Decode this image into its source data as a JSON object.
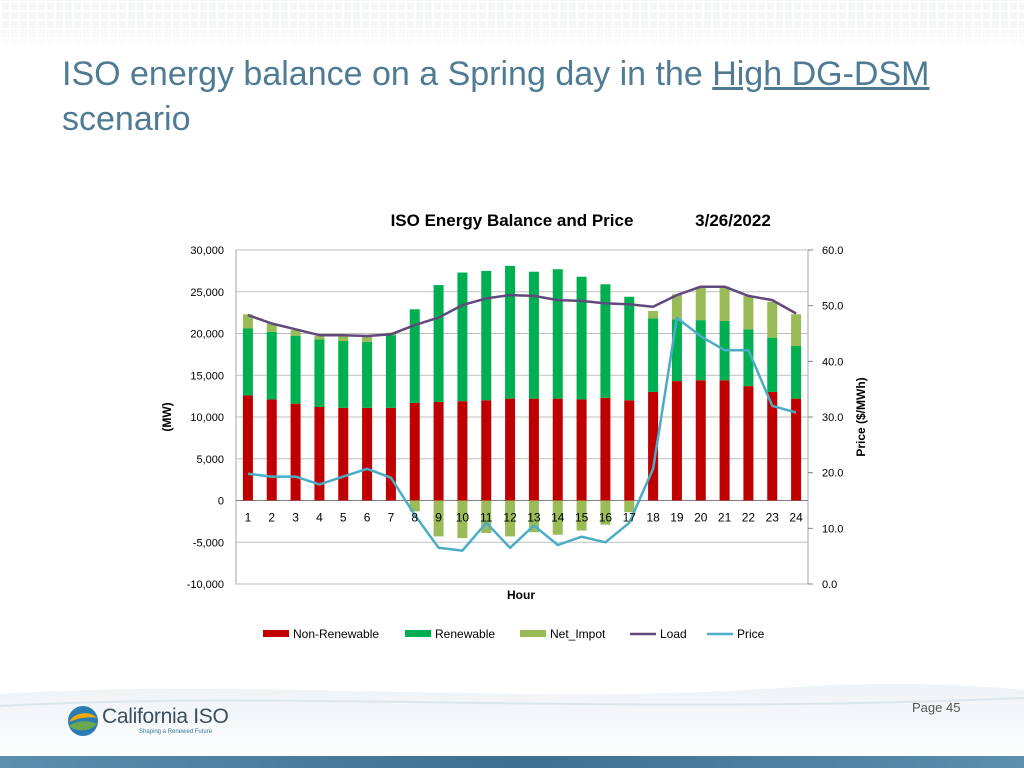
{
  "slide": {
    "title_part1": "ISO energy balance on a Spring day in the ",
    "title_link": "High DG-DSM",
    "title_part2": " scenario",
    "page_number": "Page 45",
    "logo_name": "California ISO",
    "logo_tagline": "Shaping a Renewed Future"
  },
  "chart_data": {
    "type": "bar",
    "title": "ISO Energy Balance and Price",
    "date": "3/26/2022",
    "xlabel": "Hour",
    "ylabel": "(MW)",
    "y2label": "Price ($/MWh)",
    "categories": [
      "1",
      "2",
      "3",
      "4",
      "5",
      "6",
      "7",
      "8",
      "9",
      "10",
      "11",
      "12",
      "13",
      "14",
      "15",
      "16",
      "17",
      "18",
      "19",
      "20",
      "21",
      "22",
      "23",
      "24"
    ],
    "ylim": [
      -10000,
      30000
    ],
    "yticks": [
      -10000,
      -5000,
      0,
      5000,
      10000,
      15000,
      20000,
      25000,
      30000
    ],
    "ytick_labels": [
      "-10,000",
      "-5,000",
      "0",
      "5,000",
      "10,000",
      "15,000",
      "20,000",
      "25,000",
      "30,000"
    ],
    "y2lim": [
      0,
      60
    ],
    "y2ticks": [
      0,
      10,
      20,
      30,
      40,
      50,
      60
    ],
    "y2tick_labels": [
      "0.0",
      "10.0",
      "20.0",
      "30.0",
      "40.0",
      "50.0",
      "60.0"
    ],
    "grid": true,
    "legend_position": "bottom",
    "series": [
      {
        "name": "Non-Renewable",
        "kind": "bar",
        "axis": "left",
        "color": "#c00000",
        "values": [
          12600,
          12100,
          11600,
          11200,
          11100,
          11100,
          11100,
          11700,
          11800,
          11900,
          12000,
          12200,
          12200,
          12200,
          12100,
          12300,
          12000,
          13000,
          14300,
          14400,
          14400,
          13700,
          13000,
          12200
        ]
      },
      {
        "name": "Renewable",
        "kind": "bar",
        "axis": "left",
        "color": "#00b050",
        "values": [
          8000,
          8100,
          8100,
          8100,
          8000,
          7900,
          8700,
          11200,
          14000,
          15400,
          15500,
          15900,
          15200,
          15500,
          14700,
          13600,
          12400,
          8800,
          7400,
          7200,
          7100,
          6800,
          6500,
          6300
        ]
      },
      {
        "name": "Net_Impot",
        "kind": "bar",
        "axis": "left",
        "color": "#9bbb59",
        "values": [
          1700,
          1000,
          700,
          400,
          600,
          600,
          300,
          -1300,
          -4300,
          -4500,
          -3900,
          -4300,
          -3800,
          -4100,
          -3600,
          -2900,
          -1400,
          900,
          3000,
          4000,
          4100,
          4000,
          4300,
          3800
        ]
      },
      {
        "name": "Load",
        "kind": "line",
        "axis": "left",
        "color": "#604a7b",
        "values": [
          22200,
          21200,
          20500,
          19800,
          19800,
          19700,
          19900,
          21000,
          21900,
          23400,
          24200,
          24600,
          24500,
          24000,
          23900,
          23600,
          23500,
          23200,
          24600,
          25600,
          25600,
          24500,
          24000,
          22400
        ]
      },
      {
        "name": "Price",
        "kind": "line",
        "axis": "right",
        "color": "#4bacc6",
        "values": [
          19.8,
          19.3,
          19.3,
          17.9,
          19.3,
          20.7,
          19.1,
          12.4,
          6.5,
          6.0,
          11.0,
          6.5,
          10.5,
          7.0,
          8.5,
          7.5,
          11.0,
          20.7,
          47.8,
          44.5,
          42.0,
          42.0,
          32.0,
          30.8
        ]
      }
    ]
  }
}
